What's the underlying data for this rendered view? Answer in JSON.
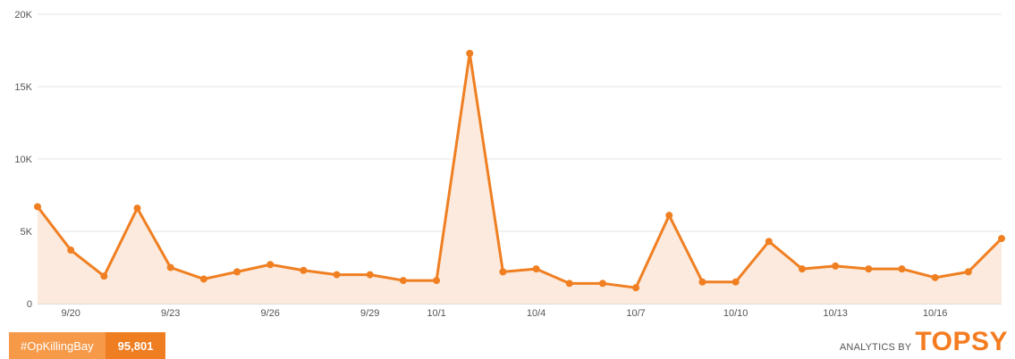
{
  "colors": {
    "line": "#f07f22",
    "area": "#fbeadd",
    "grid": "#e6e6e6",
    "axis": "#bbbbbb",
    "badge_tag": "#f69a4a",
    "badge_count": "#ef7d22",
    "brand": "#f47c20"
  },
  "chart_data": {
    "type": "area",
    "title": "",
    "xlabel": "",
    "ylabel": "",
    "ylim": [
      0,
      20000
    ],
    "yticks": [
      0,
      5000,
      10000,
      15000,
      20000
    ],
    "ytick_labels": [
      "0",
      "5K",
      "10K",
      "15K",
      "20K"
    ],
    "x": [
      "9/19",
      "9/20",
      "9/21",
      "9/22",
      "9/23",
      "9/24",
      "9/25",
      "9/26",
      "9/27",
      "9/28",
      "9/29",
      "9/30",
      "10/1",
      "10/2",
      "10/3",
      "10/4",
      "10/5",
      "10/6",
      "10/7",
      "10/8",
      "10/9",
      "10/10",
      "10/11",
      "10/12",
      "10/13",
      "10/14",
      "10/15",
      "10/16",
      "10/17",
      "10/18"
    ],
    "xtick_labels": [
      "9/20",
      "9/23",
      "9/26",
      "9/29",
      "10/1",
      "10/4",
      "10/7",
      "10/10",
      "10/13",
      "10/16"
    ],
    "series": [
      {
        "values": [
          6700,
          3700,
          1900,
          6600,
          2500,
          1700,
          2200,
          2700,
          2300,
          2000,
          2000,
          1600,
          1600,
          17300,
          2200,
          2400,
          1400,
          1400,
          1100,
          6100,
          1500,
          1500,
          4300,
          2400,
          2600,
          2400,
          2400,
          1800,
          2200,
          4500
        ]
      }
    ],
    "grid": true,
    "legend": false
  },
  "footer": {
    "hashtag": "#OpKillingBay",
    "count": "95,801",
    "brand_prefix": "ANALYTICS BY",
    "brand_name": "TOPSY"
  }
}
